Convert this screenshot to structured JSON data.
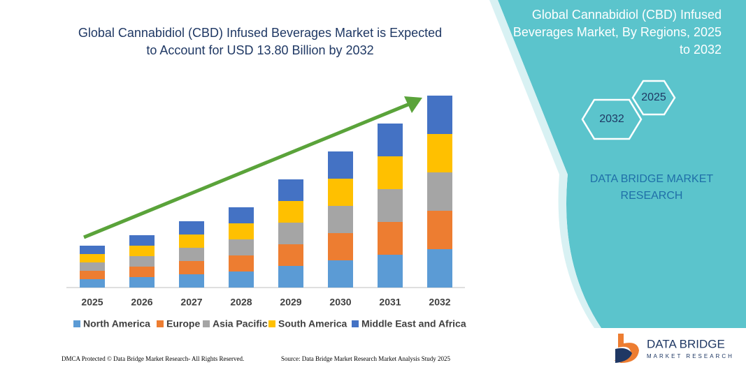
{
  "header": {
    "title_lines": [
      "Global Cannabidiol (CBD) Infused Beverages Market is Expected",
      "to Account for USD 13.80 Billion by 2032"
    ]
  },
  "chart_data": {
    "type": "stacked_bar",
    "categories": [
      "2025",
      "2026",
      "2027",
      "2028",
      "2029",
      "2030",
      "2031",
      "2032"
    ],
    "series": [
      {
        "name": "North America",
        "color": "#5b9bd5",
        "values": [
          12,
          15,
          19,
          23,
          31,
          39,
          47,
          55
        ]
      },
      {
        "name": "Europe",
        "color": "#ed7d31",
        "values": [
          12,
          15,
          19,
          23,
          31,
          39,
          47,
          55
        ]
      },
      {
        "name": "Asia Pacific",
        "color": "#a5a5a5",
        "values": [
          12,
          15,
          19,
          23,
          31,
          39,
          47,
          55
        ]
      },
      {
        "name": "South America",
        "color": "#ffc000",
        "values": [
          12,
          15,
          19,
          23,
          31,
          39,
          47,
          55
        ]
      },
      {
        "name": "Middle East and Africa",
        "color": "#4472c4",
        "values": [
          12,
          15,
          19,
          23,
          31,
          39,
          47,
          55
        ]
      }
    ]
  },
  "panel": {
    "title_lines": [
      "Global Cannabidiol (CBD) Infused",
      "Beverages Market, By Regions, 2025",
      "to 2032"
    ],
    "hexagons": [
      "2025",
      "2032"
    ],
    "brand_lines": [
      "DATA BRIDGE MARKET",
      "RESEARCH"
    ]
  },
  "logo": {
    "text": "DATA BRIDGE",
    "subtext": "MARKET RESEARCH"
  },
  "footer": {
    "left": "DMCA Protected © Data Bridge Market Research- All Rights Reserved.",
    "right": "Source: Data Bridge Market Research Market Analysis Study 2025"
  }
}
